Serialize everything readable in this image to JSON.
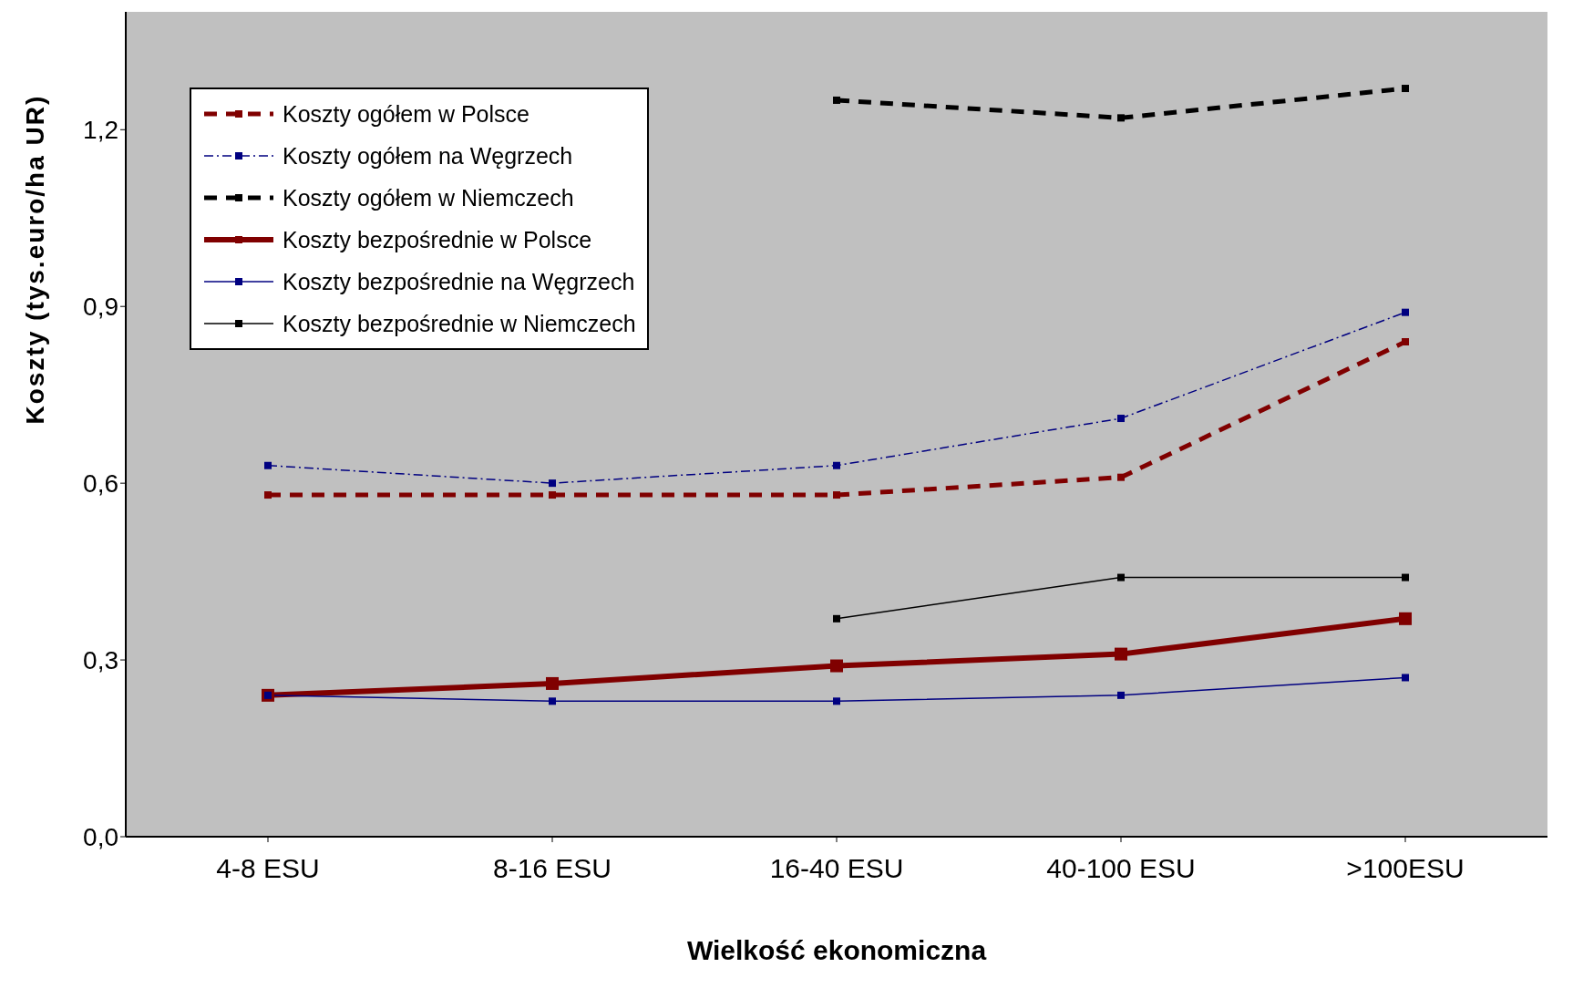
{
  "chart_data": {
    "type": "line",
    "xlabel": "Wielkość ekonomiczna",
    "ylabel": "Koszty (tys.euro/ha UR)",
    "categories": [
      "4-8 ESU",
      "8-16 ESU",
      "16-40 ESU",
      "40-100 ESU",
      ">100ESU"
    ],
    "series": [
      {
        "name": "Koszty ogółem w Polsce",
        "color": "#800000",
        "line_style": "dashed",
        "values": [
          0.58,
          0.58,
          0.58,
          0.61,
          0.84
        ]
      },
      {
        "name": "Koszty ogółem na Węgrzech",
        "color": "#000080",
        "line_style": "dashdot",
        "values": [
          0.63,
          0.6,
          0.63,
          0.71,
          0.89
        ]
      },
      {
        "name": "Koszty ogółem w Niemczech",
        "color": "#000000",
        "line_style": "dashed",
        "values": [
          null,
          null,
          1.25,
          1.22,
          1.27
        ]
      },
      {
        "name": "Koszty bezpośrednie w Polsce",
        "color": "#800000",
        "line_style": "solid",
        "values": [
          0.24,
          0.26,
          0.29,
          0.31,
          0.37
        ]
      },
      {
        "name": "Koszty bezpośrednie na Węgrzech",
        "color": "#000080",
        "line_style": "solid",
        "values": [
          0.24,
          0.23,
          0.23,
          0.24,
          0.27
        ]
      },
      {
        "name": "Koszty bezpośrednie w Niemczech",
        "color": "#000000",
        "line_style": "solid",
        "values": [
          null,
          null,
          0.37,
          0.44,
          0.44
        ]
      }
    ],
    "ylim": [
      0,
      1.4
    ],
    "yticks": [
      {
        "value": 0,
        "label": "0,0"
      },
      {
        "value": 0.3,
        "label": "0,3"
      },
      {
        "value": 0.6,
        "label": "0,6"
      },
      {
        "value": 0.9,
        "label": "0,9"
      },
      {
        "value": 1.2,
        "label": "1,2"
      }
    ],
    "grid": false,
    "legend": "top left",
    "marker": "square"
  }
}
